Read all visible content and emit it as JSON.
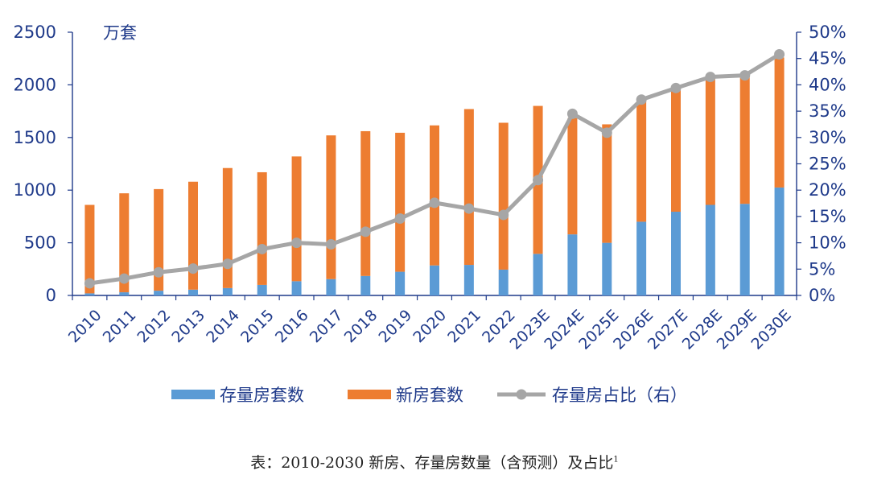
{
  "chart_data": {
    "type": "bar",
    "stacked": true,
    "unit_left": "万套",
    "categories": [
      "2010",
      "2011",
      "2012",
      "2013",
      "2014",
      "2015",
      "2016",
      "2017",
      "2018",
      "2019",
      "2020",
      "2021",
      "2022",
      "2023E",
      "2024E",
      "2025E",
      "2026E",
      "2027E",
      "2028E",
      "2029E",
      "2030E"
    ],
    "series": [
      {
        "name": "存量房套数",
        "type": "bar",
        "axis": "left",
        "color": "#5b9bd5",
        "values": [
          20,
          30,
          45,
          55,
          70,
          100,
          135,
          155,
          185,
          225,
          285,
          290,
          245,
          395,
          580,
          500,
          700,
          795,
          860,
          870,
          1025
        ]
      },
      {
        "name": "新房套数",
        "type": "bar",
        "axis": "left",
        "color": "#ed7d31",
        "values": [
          840,
          940,
          965,
          1025,
          1140,
          1070,
          1185,
          1365,
          1375,
          1320,
          1330,
          1480,
          1395,
          1405,
          1105,
          1125,
          1165,
          1195,
          1215,
          1225,
          1235
        ]
      },
      {
        "name": "存量房占比（右）",
        "type": "line",
        "axis": "right",
        "color": "#a6a6a6",
        "values": [
          2.3,
          3.2,
          4.4,
          5.1,
          6.0,
          8.8,
          10.0,
          9.7,
          12.1,
          14.6,
          17.6,
          16.5,
          15.3,
          21.9,
          34.5,
          30.9,
          37.2,
          39.4,
          41.5,
          41.8,
          45.8
        ]
      }
    ],
    "y_left": {
      "min": 0,
      "max": 2500,
      "ticks": [
        "0",
        "500",
        "1000",
        "1500",
        "2000",
        "2500"
      ]
    },
    "y_right": {
      "min": 0,
      "max": 50,
      "ticks": [
        "0%",
        "5%",
        "10%",
        "15%",
        "20%",
        "25%",
        "30%",
        "35%",
        "40%",
        "45%",
        "50%"
      ]
    },
    "grid": false,
    "legend_position": "bottom"
  },
  "caption": {
    "text": "表：2010-2030 新房、存量房数量（含预测）及占比",
    "footnote_mark": "1"
  }
}
